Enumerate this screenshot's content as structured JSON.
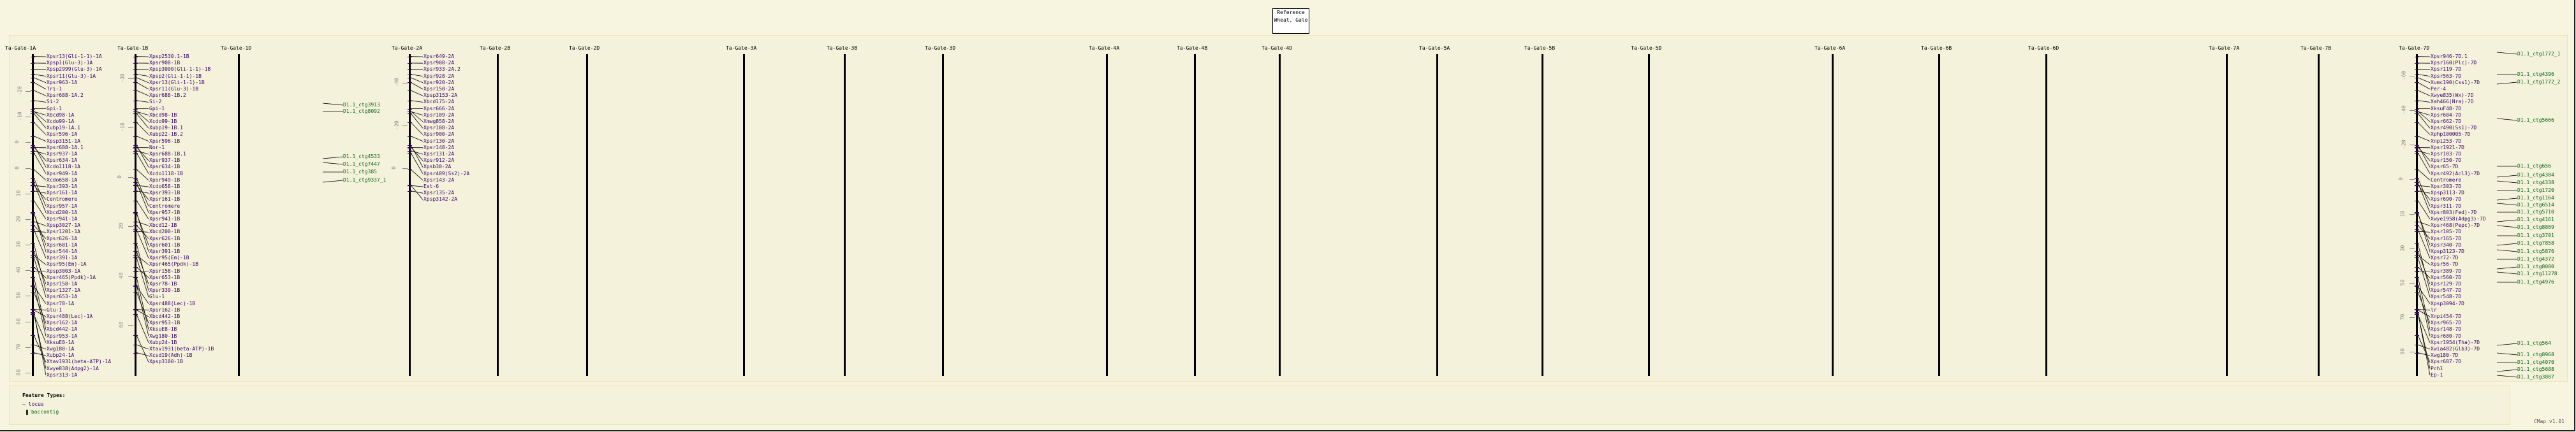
{
  "reference": {
    "title": "Reference",
    "species": "Wheat, Gale"
  },
  "colors": {
    "locus": "#3b006e",
    "baccontig": "#0b6a1a",
    "background": "#f7f5df"
  },
  "maps": [
    {
      "title": "Ta-Gale-1A",
      "ticks": [
        "-20",
        "-10",
        "0",
        "0",
        "10",
        "20",
        "30",
        "40",
        "50",
        "60",
        "70",
        "80"
      ],
      "loci": [
        "Xpsr13(Gli-1-1)-1A",
        "Xpsp1(Glu-3)-1A",
        "Xpsp2999(Glu-3)-1A",
        "Xpsr11(Glu-3)-1A",
        "Xpsr963-1A",
        "Tri-1",
        "Xpsr688-1A.2",
        "Si-2",
        "Gpi-1",
        "Xbcd98-1A",
        "Xcdo99-1A",
        "Xubp19-1A.1",
        "Xpsr596-1A",
        "Xpsp3151-1A",
        "Xpsr688-1A.1",
        "Xpsr937-1A",
        "Xpsr634-1A",
        "Xcdo1118-1A",
        "Xpsr949-1A",
        "Xcdo658-1A",
        "Xpsr393-1A",
        "Xpsr161-1A",
        "Centromere",
        "Xpsr957-1A",
        "Xbcd200-1A",
        "Xpsr941-1A",
        "Xpsp3027-1A",
        "Xpsr1201-1A",
        "Xpsr626-1A",
        "Xpsr601-1A",
        "Xpsr544-1A",
        "Xpsr391-1A",
        "Xpsr95(Em)-1A",
        "Xpsp3003-1A",
        "Xpsr465(Ppdk)-1A",
        "Xpsr158-1A",
        "Xpsr1327-1A",
        "Xpsr653-1A",
        "Xpsr78-1A",
        "Glu-1",
        "Xpsr488(Lec)-1A",
        "Xpsr162-1A",
        "Xbcd442-1A",
        "Xpsr953-1A",
        "XksuE8-1A",
        "Xwg180-1A",
        "Xubp24-1A",
        "Xtav1931(beta-ATP)-1A",
        "Xwye838(Adpg2)-1A",
        "Xpsr313-1A"
      ],
      "contigs": []
    },
    {
      "title": "Ta-Gale-1B",
      "ticks": [
        "-30",
        "-10",
        "0",
        "20",
        "40",
        "60"
      ],
      "loci": [
        "Xpsp2530.1-1B",
        "Xpsr908-1B",
        "Xpsp3000(Gli-1-1)-1B",
        "Xpsp2(Gli-1-1)-1B",
        "Xpsr13(Gli-1-1)-1B",
        "Xpsr11(Glu-3)-1B",
        "Xpsr688-1B.2",
        "Si-2",
        "Gpi-1",
        "Xbcd98-1B",
        "Xcdo99-1B",
        "Xubp19-1B.1",
        "Xubp22-1B.2",
        "Xpsr596-1B",
        "Nor-1",
        "Xpsr688-1B.1",
        "Xpsr937-1B",
        "Xpsr634-1B",
        "Xcdo1118-1B",
        "Xpsr949-1B",
        "Xcdo658-1B",
        "Xpsr393-1B",
        "Xpsr161-1B",
        "Centromere",
        "Xpsr957-1B",
        "Xpsr941-1B",
        "Xbcd12-1B",
        "Xbcd200-1B",
        "Xpsr626-1B",
        "Xpsr601-1B",
        "Xpsr391-1B",
        "Xpsr95(Em)-1B",
        "Xpsr465(Ppdk)-1B",
        "Xpsr158-1B",
        "Xpsr653-1B",
        "Xpsr78-1B",
        "Xpsr330-1B",
        "Glu-1",
        "Xpsr488(Lec)-1B",
        "Xpsr162-1B",
        "Xbcd442-1B",
        "Xpsr953-1B",
        "XksuE8-1B",
        "Xwg180-1B",
        "Xubp24-1B",
        "Xtav1931(beta-ATP)-1B",
        "Xcsd19(Adh)-1B",
        "Xpsp3100-1B"
      ],
      "contigs": []
    },
    {
      "title": "Ta-Gale-1D",
      "ticks": [],
      "loci": [],
      "contigs": [
        "D1.1_ctg3913",
        "D1.1_ctg8092",
        "D1.1_ctg4533",
        "D1.1_ctg7447",
        "D1.1_ctg385",
        "D1.1_ctg9337_1"
      ]
    },
    {
      "title": "Ta-Gale-2A",
      "ticks": [
        "-40",
        "-20",
        "0"
      ],
      "loci": [
        "Xpsr649-2A",
        "Xpsr908-2A",
        "Xpsr933-2A.2",
        "Xpsr928-2A",
        "Xpsr920-2A",
        "Xpsr150-2A",
        "Xpsp3153-2A",
        "Xbcd175-2A",
        "Xpsr666-2A",
        "Xpsr109-2A",
        "Xmwg858-2A",
        "Xpsr108-2A",
        "Xpsr900-2A",
        "Xpsr130-2A",
        "Xpsr148-2A",
        "Xpsr131-2A",
        "Xpsr912-2A",
        "Xpsb30-2A",
        "Xpsr489(Ss2)-2A",
        "Xpsr143-2A",
        "Est-6",
        "Xpsr135-2A",
        "Xpsp3142-2A"
      ],
      "contigs": []
    },
    {
      "title": "Ta-Gale-2B",
      "ticks": [],
      "loci": [],
      "contigs": []
    },
    {
      "title": "Ta-Gale-2D",
      "ticks": [],
      "loci": [],
      "contigs": []
    },
    {
      "title": "Ta-Gale-3A",
      "ticks": [],
      "loci": [],
      "contigs": []
    },
    {
      "title": "Ta-Gale-3B",
      "ticks": [],
      "loci": [],
      "contigs": []
    },
    {
      "title": "Ta-Gale-3D",
      "ticks": [],
      "loci": [],
      "contigs": []
    },
    {
      "title": "Ta-Gale-4A",
      "ticks": [],
      "loci": [],
      "contigs": []
    },
    {
      "title": "Ta-Gale-4B",
      "ticks": [],
      "loci": [],
      "contigs": []
    },
    {
      "title": "Ta-Gale-4D",
      "ticks": [],
      "loci": [],
      "contigs": []
    },
    {
      "title": "Ta-Gale-5A",
      "ticks": [],
      "loci": [],
      "contigs": []
    },
    {
      "title": "Ta-Gale-5B",
      "ticks": [],
      "loci": [],
      "contigs": []
    },
    {
      "title": "Ta-Gale-5D",
      "ticks": [],
      "loci": [],
      "contigs": []
    },
    {
      "title": "Ta-Gale-6A",
      "ticks": [],
      "loci": [],
      "contigs": []
    },
    {
      "title": "Ta-Gale-6B",
      "ticks": [],
      "loci": [],
      "contigs": []
    },
    {
      "title": "Ta-Gale-6D",
      "ticks": [],
      "loci": [],
      "contigs": []
    },
    {
      "title": "Ta-Gale-7A",
      "ticks": [],
      "loci": [],
      "contigs": []
    },
    {
      "title": "Ta-Gale-7B",
      "ticks": [],
      "loci": [],
      "contigs": []
    },
    {
      "title": "Ta-Gale-7D",
      "ticks": [
        "-60",
        "-40",
        "-20",
        "0",
        "10",
        "30",
        "50",
        "70",
        "90"
      ],
      "loci": [
        "Xpsr946-7D.1",
        "Xpsr160(Plc)-7D",
        "Xpsr119-7D",
        "Xpsr563-7D",
        "Xumc190(Css1)-7D",
        "Per-4",
        "Xwye835(Wx)-7D",
        "Xah466(Nra)-7D",
        "XksuF48-7D",
        "Xpsr604-7D",
        "Xpsr662-7D",
        "Xpsr490(Ss1)-7D",
        "Xphp100005-7D",
        "Xnpi253-7D",
        "Xpsr1921-7D",
        "Xpsr103-7D",
        "Xpsr150-7D",
        "Xpsr65-7D",
        "Xpsr492(Acl3)-7D",
        "Centromere",
        "Xpsr303-7D",
        "Xpsp3113-7D",
        "Xpsr690-7D",
        "Xpsr311-7D",
        "Xpsr803(Fed)-7D",
        "Xwye1958(Adpg3)-7D",
        "Xpsr468(Pepc)-7D",
        "Xpsr105-7D",
        "Xpsr165-7D",
        "Xpsr340-7D",
        "Xpsp3123-7D",
        "Xpsr72-7D",
        "Xpsr56-7D",
        "Xpsr389-7D",
        "Xpsr560-7D",
        "Xpsr129-7D",
        "Xpsr547-7D",
        "Xpsr548-7D",
        "Xpsp3094-7D",
        "lr",
        "Xnpi454-7D",
        "Xpsr965-7D",
        "Xpsr148-7D",
        "Xpsr680-7D",
        "Xpsr1954(Tha)-7D",
        "Xwia482(Glb3)-7D",
        "Xwg180-7D",
        "Xpsr687-7D",
        "Pch1",
        "Ep-1"
      ],
      "contigs": [
        "D1.1_ctg1772_1",
        "D1.1_ctg4396",
        "D1.1_ctg1772_2",
        "D1.1_ctg5666",
        "D1.1_ctg656",
        "D1.1_ctg4304",
        "D1.1_ctg4338",
        "D1.1_ctg1720",
        "D1.1_ctg1164",
        "D1.1_ctg6514",
        "D1.1_ctg5710",
        "D1.1_ctg4161",
        "D1.1_ctg8869",
        "D1.1_ctg3701",
        "D1.1_ctg7858",
        "D1.1_ctg5876",
        "D1.1_ctg4372",
        "D1.1_ctg8080",
        "D1.1_ctg11278",
        "D1.1_ctg4976",
        "D1.1_ctg564",
        "D1.1_ctg8968",
        "D1.1_ctg4070",
        "D1.1_ctg5688",
        "D1.1_ctg3807"
      ]
    }
  ],
  "legend": {
    "title": "Feature Types:",
    "locus": "locus",
    "baccontig": "baccontig"
  },
  "version": "CMap v1.01"
}
